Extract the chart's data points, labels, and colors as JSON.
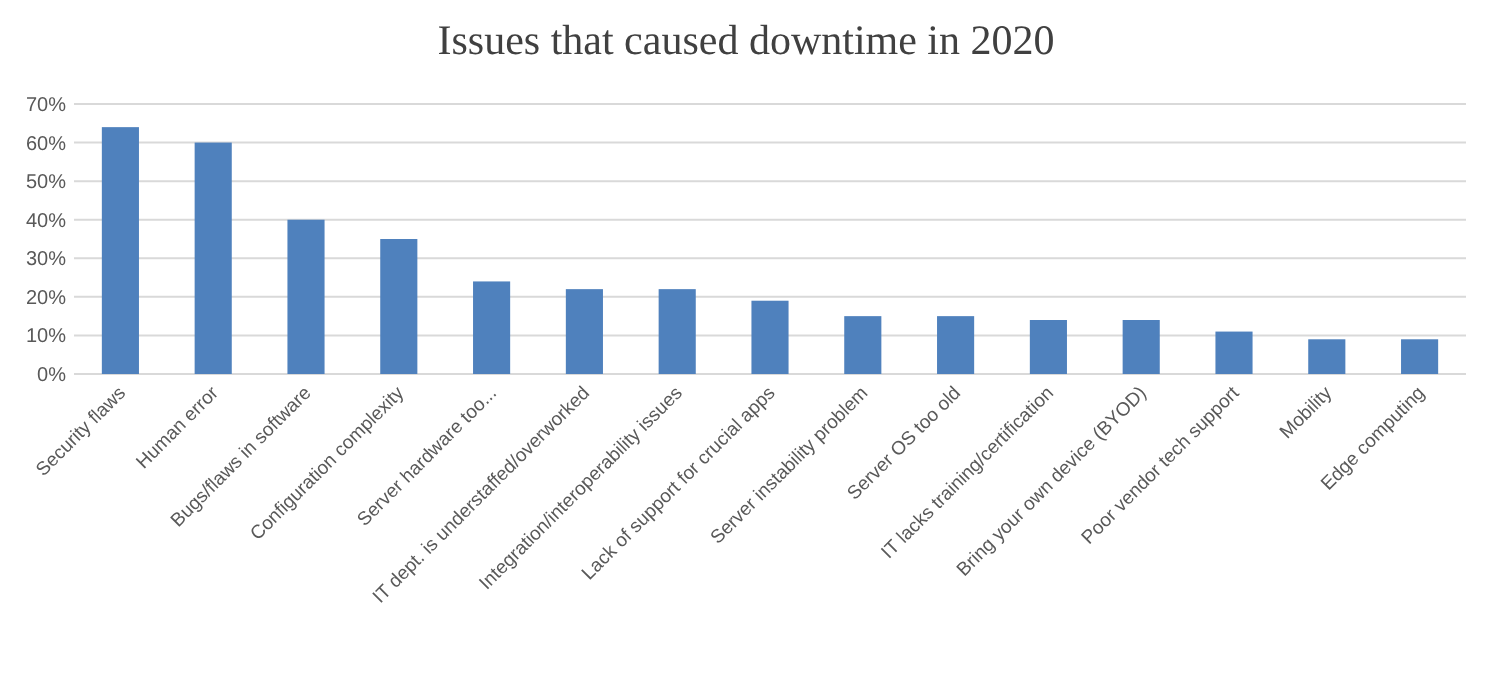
{
  "chart_data": {
    "type": "bar",
    "title": "Issues that caused downtime in 2020",
    "categories": [
      "Security flaws",
      "Human error",
      "Bugs/flaws in software",
      "Configuration complexity",
      "Server hardware too...",
      "IT dept. is understaffed/overworked",
      "Integration/interoperability issues",
      "Lack of support for crucial apps",
      "Server instability problem",
      "Server OS too old",
      "IT lacks training/certification",
      "Bring your own device (BYOD)",
      "Poor vendor tech support",
      "Mobility",
      "Edge computing"
    ],
    "values": [
      64,
      60,
      40,
      35,
      24,
      22,
      22,
      19,
      15,
      15,
      14,
      14,
      11,
      9,
      9
    ],
    "color": "#4f81bd",
    "ylim": [
      0,
      70
    ],
    "yticks": [
      {
        "value": 0,
        "label": "0%"
      },
      {
        "value": 10,
        "label": "10%"
      },
      {
        "value": 20,
        "label": "20%"
      },
      {
        "value": 30,
        "label": "30%"
      },
      {
        "value": 40,
        "label": "40%"
      },
      {
        "value": 50,
        "label": "50%"
      },
      {
        "value": 60,
        "label": "60%"
      },
      {
        "value": 70,
        "label": "70%"
      }
    ],
    "grid": true
  }
}
